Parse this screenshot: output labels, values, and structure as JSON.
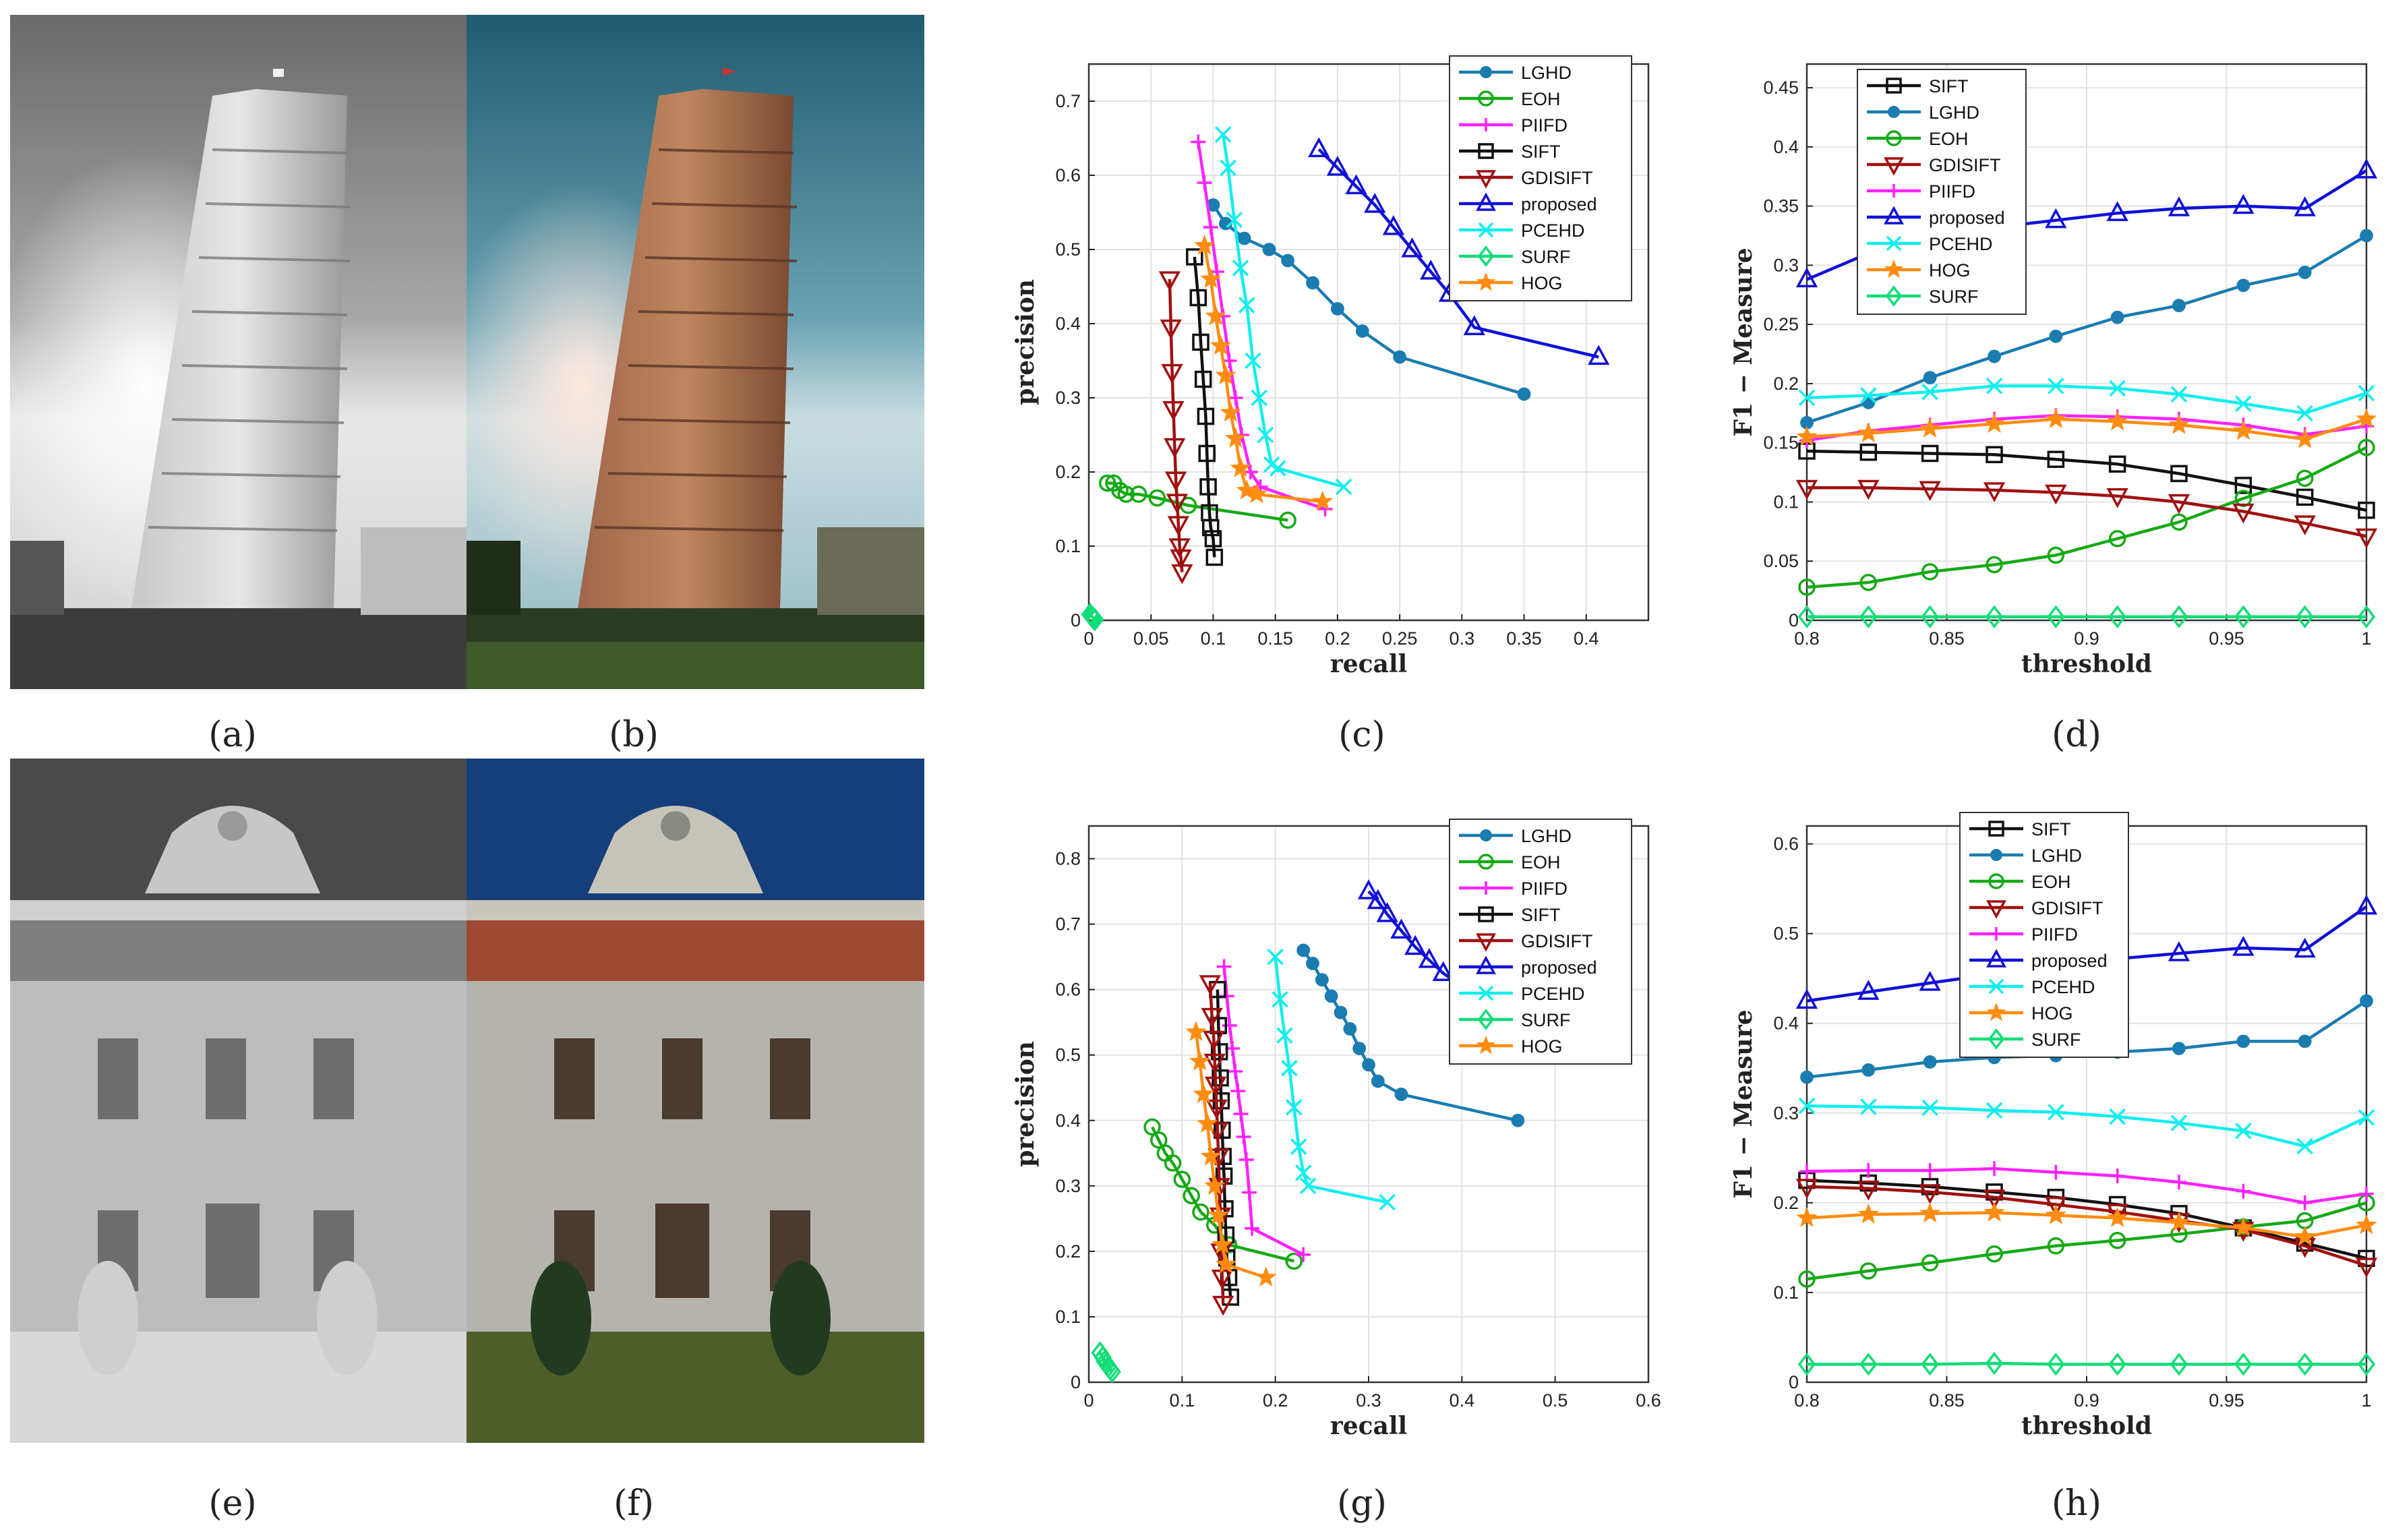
{
  "photos": [
    {
      "id": "a",
      "label": "(a)",
      "description": "leaning-tower-grayscale"
    },
    {
      "id": "b",
      "label": "(b)",
      "description": "leaning-tower-color"
    },
    {
      "id": "e",
      "label": "(e)",
      "description": "palace-facade-grayscale"
    },
    {
      "id": "f",
      "label": "(f)",
      "description": "palace-facade-color"
    }
  ],
  "panel_labels": {
    "a": "(a)",
    "b": "(b)",
    "c": "(c)",
    "d": "(d)",
    "e": "(e)",
    "f": "(f)",
    "g": "(g)",
    "h": "(h)"
  },
  "colors": {
    "LGHD": "#1a7cb0",
    "EOH": "#16a916",
    "PIIFD": "#ff22ff",
    "SIFT": "#111111",
    "GDISIFT": "#a01010",
    "proposed": "#1010d8",
    "PCEHD": "#11eeee",
    "SURF": "#11dd77",
    "HOG": "#ff8c10"
  },
  "chart_data": [
    {
      "id": "c",
      "type": "line",
      "xlabel": "recall",
      "ylabel": "precision",
      "xlim": [
        0,
        0.45
      ],
      "ylim": [
        0,
        0.75
      ],
      "xticks": [
        0,
        0.05,
        0.1,
        0.15,
        0.2,
        0.25,
        0.3,
        0.35,
        0.4
      ],
      "xtick_labels": [
        "0",
        "0.05",
        "0.1",
        "0.15",
        "0.2",
        "0.25",
        "0.3",
        "0.35",
        "0.4"
      ],
      "yticks": [
        0,
        0.1,
        0.2,
        0.3,
        0.4,
        0.5,
        0.6,
        0.7
      ],
      "ytick_labels": [
        "0",
        "0.1",
        "0.2",
        "0.3",
        "0.4",
        "0.5",
        "0.6",
        "0.7"
      ],
      "legend": [
        "LGHD",
        "EOH",
        "PIIFD",
        "SIFT",
        "GDISIFT",
        "proposed",
        "PCEHD",
        "SURF",
        "HOG"
      ],
      "legend_position": "top-right",
      "series": [
        {
          "name": "LGHD",
          "x": [
            0.1,
            0.11,
            0.125,
            0.145,
            0.16,
            0.18,
            0.2,
            0.22,
            0.25,
            0.35
          ],
          "y": [
            0.56,
            0.535,
            0.515,
            0.5,
            0.485,
            0.455,
            0.42,
            0.39,
            0.355,
            0.305
          ]
        },
        {
          "name": "EOH",
          "x": [
            0.015,
            0.02,
            0.025,
            0.03,
            0.04,
            0.055,
            0.08,
            0.16
          ],
          "y": [
            0.185,
            0.185,
            0.175,
            0.17,
            0.17,
            0.165,
            0.155,
            0.135
          ]
        },
        {
          "name": "PIIFD",
          "x": [
            0.088,
            0.093,
            0.098,
            0.103,
            0.108,
            0.113,
            0.118,
            0.123,
            0.13,
            0.138,
            0.19
          ],
          "y": [
            0.645,
            0.59,
            0.53,
            0.47,
            0.41,
            0.35,
            0.3,
            0.25,
            0.2,
            0.18,
            0.15
          ]
        },
        {
          "name": "SIFT",
          "x": [
            0.085,
            0.088,
            0.09,
            0.092,
            0.094,
            0.095,
            0.096,
            0.097,
            0.098,
            0.1,
            0.101
          ],
          "y": [
            0.49,
            0.435,
            0.375,
            0.325,
            0.275,
            0.225,
            0.18,
            0.145,
            0.125,
            0.11,
            0.085
          ]
        },
        {
          "name": "GDISIFT",
          "x": [
            0.065,
            0.066,
            0.067,
            0.068,
            0.069,
            0.07,
            0.071,
            0.072,
            0.073,
            0.074,
            0.075
          ],
          "y": [
            0.46,
            0.395,
            0.335,
            0.285,
            0.235,
            0.19,
            0.16,
            0.13,
            0.1,
            0.085,
            0.065
          ]
        },
        {
          "name": "proposed",
          "x": [
            0.185,
            0.2,
            0.215,
            0.23,
            0.245,
            0.26,
            0.275,
            0.29,
            0.31,
            0.41
          ],
          "y": [
            0.635,
            0.61,
            0.585,
            0.56,
            0.53,
            0.5,
            0.47,
            0.44,
            0.395,
            0.355
          ]
        },
        {
          "name": "PCEHD",
          "x": [
            0.108,
            0.112,
            0.117,
            0.122,
            0.127,
            0.132,
            0.137,
            0.142,
            0.147,
            0.152,
            0.205
          ],
          "y": [
            0.655,
            0.61,
            0.54,
            0.475,
            0.425,
            0.35,
            0.3,
            0.25,
            0.21,
            0.205,
            0.18
          ]
        },
        {
          "name": "SURF",
          "x": [
            0.001,
            0.002,
            0.003,
            0.004,
            0.005
          ],
          "y": [
            0.008,
            0.006,
            0.004,
            0.002,
            0.001
          ]
        },
        {
          "name": "HOG",
          "x": [
            0.093,
            0.098,
            0.102,
            0.106,
            0.11,
            0.114,
            0.118,
            0.122,
            0.127,
            0.135,
            0.188
          ],
          "y": [
            0.505,
            0.46,
            0.41,
            0.37,
            0.33,
            0.28,
            0.245,
            0.205,
            0.175,
            0.17,
            0.16
          ]
        }
      ]
    },
    {
      "id": "d",
      "type": "line",
      "xlabel": "threshold",
      "ylabel": "F1 − Measure",
      "xlim": [
        0.8,
        1
      ],
      "ylim": [
        0,
        0.47
      ],
      "xticks": [
        0.8,
        0.85,
        0.9,
        0.95,
        1
      ],
      "xtick_labels": [
        "0.8",
        "0.85",
        "0.9",
        "0.95",
        "1"
      ],
      "yticks": [
        0,
        0.05,
        0.1,
        0.15,
        0.2,
        0.25,
        0.3,
        0.35,
        0.4,
        0.45
      ],
      "ytick_labels": [
        "0",
        "0.05",
        "0.1",
        "0.15",
        "0.2",
        "0.25",
        "0.3",
        "0.35",
        "0.4",
        "0.45"
      ],
      "x": [
        0.8,
        0.822,
        0.844,
        0.867,
        0.889,
        0.911,
        0.933,
        0.956,
        0.978,
        1.0
      ],
      "legend": [
        "SIFT",
        "LGHD",
        "EOH",
        "GDISIFT",
        "PIIFD",
        "proposed",
        "PCEHD",
        "HOG",
        "SURF"
      ],
      "legend_position": "top-left",
      "series": [
        {
          "name": "SIFT",
          "values": [
            0.143,
            0.142,
            0.141,
            0.14,
            0.136,
            0.132,
            0.124,
            0.114,
            0.104,
            0.093
          ]
        },
        {
          "name": "LGHD",
          "values": [
            0.167,
            0.184,
            0.205,
            0.223,
            0.24,
            0.256,
            0.266,
            0.283,
            0.294,
            0.325
          ]
        },
        {
          "name": "EOH",
          "values": [
            0.028,
            0.032,
            0.041,
            0.047,
            0.055,
            0.069,
            0.083,
            0.103,
            0.12,
            0.146
          ]
        },
        {
          "name": "GDISIFT",
          "values": [
            0.112,
            0.112,
            0.111,
            0.11,
            0.108,
            0.105,
            0.1,
            0.092,
            0.082,
            0.071
          ]
        },
        {
          "name": "PIIFD",
          "values": [
            0.152,
            0.16,
            0.165,
            0.17,
            0.173,
            0.172,
            0.17,
            0.165,
            0.157,
            0.164
          ]
        },
        {
          "name": "proposed",
          "values": [
            0.288,
            0.31,
            0.327,
            0.332,
            0.338,
            0.344,
            0.348,
            0.35,
            0.348,
            0.38
          ]
        },
        {
          "name": "PCEHD",
          "values": [
            0.188,
            0.19,
            0.193,
            0.198,
            0.198,
            0.196,
            0.191,
            0.183,
            0.175,
            0.192
          ]
        },
        {
          "name": "HOG",
          "values": [
            0.155,
            0.158,
            0.162,
            0.166,
            0.17,
            0.168,
            0.165,
            0.16,
            0.153,
            0.17
          ]
        },
        {
          "name": "SURF",
          "values": [
            0.003,
            0.003,
            0.003,
            0.003,
            0.003,
            0.003,
            0.003,
            0.003,
            0.003,
            0.003
          ]
        }
      ]
    },
    {
      "id": "g",
      "type": "line",
      "xlabel": "recall",
      "ylabel": "precision",
      "xlim": [
        0,
        0.6
      ],
      "ylim": [
        0,
        0.85
      ],
      "xticks": [
        0,
        0.1,
        0.2,
        0.3,
        0.4,
        0.5,
        0.6
      ],
      "xtick_labels": [
        "0",
        "0.1",
        "0.2",
        "0.3",
        "0.4",
        "0.5",
        "0.6"
      ],
      "yticks": [
        0,
        0.1,
        0.2,
        0.3,
        0.4,
        0.5,
        0.6,
        0.7,
        0.8
      ],
      "ytick_labels": [
        "0",
        "0.1",
        "0.2",
        "0.3",
        "0.4",
        "0.5",
        "0.6",
        "0.7",
        "0.8"
      ],
      "legend": [
        "LGHD",
        "EOH",
        "PIIFD",
        "SIFT",
        "GDISIFT",
        "proposed",
        "PCEHD",
        "SURF",
        "HOG"
      ],
      "legend_position": "top-right",
      "series": [
        {
          "name": "LGHD",
          "x": [
            0.23,
            0.24,
            0.25,
            0.26,
            0.27,
            0.28,
            0.29,
            0.3,
            0.31,
            0.335,
            0.46
          ],
          "y": [
            0.66,
            0.64,
            0.615,
            0.59,
            0.565,
            0.54,
            0.51,
            0.485,
            0.46,
            0.44,
            0.4
          ]
        },
        {
          "name": "EOH",
          "x": [
            0.068,
            0.075,
            0.082,
            0.09,
            0.1,
            0.11,
            0.12,
            0.135,
            0.15,
            0.22
          ],
          "y": [
            0.39,
            0.37,
            0.35,
            0.335,
            0.31,
            0.285,
            0.26,
            0.24,
            0.21,
            0.185
          ]
        },
        {
          "name": "PIIFD",
          "x": [
            0.145,
            0.148,
            0.151,
            0.154,
            0.157,
            0.16,
            0.163,
            0.166,
            0.169,
            0.172,
            0.175,
            0.23
          ],
          "y": [
            0.635,
            0.59,
            0.545,
            0.51,
            0.475,
            0.445,
            0.41,
            0.375,
            0.34,
            0.29,
            0.235,
            0.195
          ]
        },
        {
          "name": "SIFT",
          "x": [
            0.138,
            0.139,
            0.14,
            0.141,
            0.142,
            0.143,
            0.144,
            0.145,
            0.146,
            0.147,
            0.148,
            0.15,
            0.152
          ],
          "y": [
            0.6,
            0.545,
            0.505,
            0.465,
            0.43,
            0.385,
            0.345,
            0.315,
            0.265,
            0.225,
            0.19,
            0.16,
            0.13
          ]
        },
        {
          "name": "GDISIFT",
          "x": [
            0.13,
            0.132,
            0.134,
            0.135,
            0.136,
            0.137,
            0.138,
            0.139,
            0.14,
            0.141,
            0.142,
            0.143,
            0.144
          ],
          "y": [
            0.61,
            0.56,
            0.525,
            0.49,
            0.455,
            0.42,
            0.385,
            0.345,
            0.3,
            0.255,
            0.2,
            0.16,
            0.12
          ]
        },
        {
          "name": "proposed",
          "x": [
            0.3,
            0.31,
            0.32,
            0.335,
            0.35,
            0.365,
            0.38,
            0.4,
            0.43,
            0.47,
            0.52,
            0.57
          ],
          "y": [
            0.75,
            0.735,
            0.715,
            0.69,
            0.665,
            0.645,
            0.625,
            0.605,
            0.585,
            0.565,
            0.53,
            0.5
          ]
        },
        {
          "name": "PCEHD",
          "x": [
            0.2,
            0.205,
            0.21,
            0.215,
            0.22,
            0.225,
            0.23,
            0.235,
            0.32
          ],
          "y": [
            0.65,
            0.585,
            0.53,
            0.48,
            0.42,
            0.36,
            0.32,
            0.3,
            0.275
          ]
        },
        {
          "name": "SURF",
          "x": [
            0.012,
            0.015,
            0.017,
            0.019,
            0.021,
            0.023,
            0.025
          ],
          "y": [
            0.045,
            0.038,
            0.032,
            0.028,
            0.024,
            0.02,
            0.016
          ]
        },
        {
          "name": "HOG",
          "x": [
            0.115,
            0.119,
            0.123,
            0.127,
            0.131,
            0.135,
            0.139,
            0.143,
            0.147,
            0.19
          ],
          "y": [
            0.535,
            0.49,
            0.44,
            0.395,
            0.345,
            0.3,
            0.255,
            0.21,
            0.18,
            0.16
          ]
        }
      ]
    },
    {
      "id": "h",
      "type": "line",
      "xlabel": "threshold",
      "ylabel": "F1 − Measure",
      "xlim": [
        0.8,
        1
      ],
      "ylim": [
        0,
        0.62
      ],
      "xticks": [
        0.8,
        0.85,
        0.9,
        0.95,
        1
      ],
      "xtick_labels": [
        "0.8",
        "0.85",
        "0.9",
        "0.95",
        "1"
      ],
      "yticks": [
        0,
        0.1,
        0.2,
        0.3,
        0.4,
        0.5,
        0.6
      ],
      "ytick_labels": [
        "0",
        "0.1",
        "0.2",
        "0.3",
        "0.4",
        "0.5",
        "0.6"
      ],
      "x": [
        0.8,
        0.822,
        0.844,
        0.867,
        0.889,
        0.911,
        0.933,
        0.956,
        0.978,
        1.0
      ],
      "legend": [
        "SIFT",
        "LGHD",
        "EOH",
        "GDISIFT",
        "PIIFD",
        "proposed",
        "PCEHD",
        "HOG",
        "SURF"
      ],
      "legend_position": "top-left",
      "series": [
        {
          "name": "SIFT",
          "values": [
            0.225,
            0.222,
            0.218,
            0.212,
            0.206,
            0.198,
            0.188,
            0.172,
            0.155,
            0.138
          ]
        },
        {
          "name": "LGHD",
          "values": [
            0.34,
            0.348,
            0.357,
            0.362,
            0.364,
            0.368,
            0.372,
            0.38,
            0.38,
            0.425
          ]
        },
        {
          "name": "EOH",
          "values": [
            0.115,
            0.124,
            0.133,
            0.143,
            0.152,
            0.158,
            0.165,
            0.173,
            0.18,
            0.2
          ]
        },
        {
          "name": "GDISIFT",
          "values": [
            0.218,
            0.216,
            0.212,
            0.206,
            0.198,
            0.19,
            0.18,
            0.17,
            0.152,
            0.13
          ]
        },
        {
          "name": "PIIFD",
          "values": [
            0.235,
            0.236,
            0.236,
            0.238,
            0.234,
            0.23,
            0.223,
            0.213,
            0.2,
            0.21
          ]
        },
        {
          "name": "proposed",
          "values": [
            0.425,
            0.435,
            0.445,
            0.455,
            0.465,
            0.472,
            0.478,
            0.484,
            0.482,
            0.53
          ]
        },
        {
          "name": "PCEHD",
          "values": [
            0.308,
            0.307,
            0.306,
            0.303,
            0.301,
            0.296,
            0.289,
            0.28,
            0.263,
            0.295
          ]
        },
        {
          "name": "HOG",
          "values": [
            0.183,
            0.187,
            0.188,
            0.189,
            0.186,
            0.183,
            0.178,
            0.172,
            0.162,
            0.175
          ]
        },
        {
          "name": "SURF",
          "values": [
            0.02,
            0.02,
            0.02,
            0.021,
            0.02,
            0.02,
            0.02,
            0.02,
            0.02,
            0.02
          ]
        }
      ]
    }
  ]
}
